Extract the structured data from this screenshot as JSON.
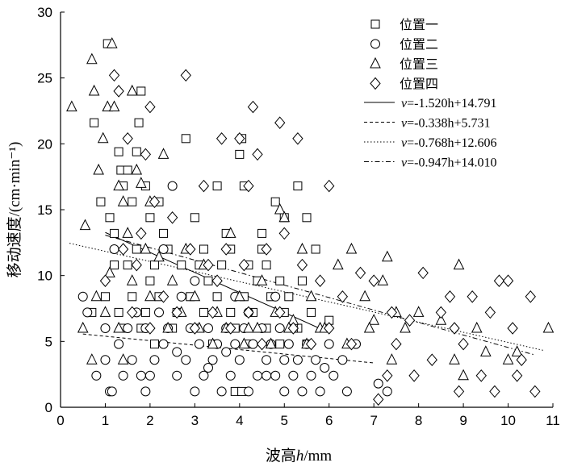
{
  "chart_data": {
    "type": "scatter",
    "xlabel_parts": [
      "波高",
      "h",
      "/mm"
    ],
    "ylabel": "移动速度/(cm·min⁻¹)",
    "xlim": [
      0,
      11
    ],
    "ylim": [
      0,
      30
    ],
    "xticks": [
      0,
      1,
      2,
      3,
      4,
      5,
      6,
      7,
      8,
      9,
      10,
      11
    ],
    "yticks": [
      0,
      5,
      10,
      15,
      20,
      25,
      30
    ],
    "grid": false,
    "legend_position": "top-right",
    "series": [
      {
        "name": "位置一",
        "marker": "square",
        "points": [
          [
            1.05,
            27.6
          ],
          [
            1.3,
            19.4
          ],
          [
            1.35,
            18.0
          ],
          [
            1.5,
            18.0
          ],
          [
            1.4,
            16.8
          ],
          [
            1.7,
            19.4
          ],
          [
            1.75,
            21.6
          ],
          [
            1.8,
            24.0
          ],
          [
            0.75,
            21.6
          ],
          [
            0.9,
            15.6
          ],
          [
            1.1,
            14.4
          ],
          [
            1.2,
            13.2
          ],
          [
            1.6,
            15.6
          ],
          [
            1.9,
            16.8
          ],
          [
            2.0,
            14.4
          ],
          [
            2.2,
            15.6
          ],
          [
            2.8,
            20.4
          ],
          [
            3.0,
            14.4
          ],
          [
            3.2,
            12.0
          ],
          [
            3.5,
            16.8
          ],
          [
            3.8,
            12.0
          ],
          [
            4.0,
            19.2
          ],
          [
            4.05,
            20.4
          ],
          [
            4.1,
            16.8
          ],
          [
            4.5,
            12.0
          ],
          [
            4.8,
            15.6
          ],
          [
            5.0,
            14.4
          ],
          [
            5.3,
            16.8
          ],
          [
            5.5,
            14.4
          ],
          [
            5.7,
            12.0
          ],
          [
            1.2,
            10.8
          ],
          [
            1.5,
            10.8
          ],
          [
            1.7,
            12.0
          ],
          [
            2.1,
            10.8
          ],
          [
            2.4,
            12.0
          ],
          [
            2.7,
            10.8
          ],
          [
            3.1,
            10.8
          ],
          [
            3.3,
            9.6
          ],
          [
            3.6,
            10.8
          ],
          [
            4.2,
            10.8
          ],
          [
            4.4,
            9.6
          ],
          [
            4.6,
            10.8
          ],
          [
            4.9,
            9.6
          ],
          [
            5.1,
            8.4
          ],
          [
            5.4,
            9.6
          ],
          [
            1.0,
            8.4
          ],
          [
            1.3,
            7.2
          ],
          [
            1.6,
            8.4
          ],
          [
            1.9,
            7.2
          ],
          [
            2.2,
            8.4
          ],
          [
            2.6,
            7.2
          ],
          [
            2.9,
            8.4
          ],
          [
            3.2,
            7.2
          ],
          [
            3.5,
            8.4
          ],
          [
            3.8,
            7.2
          ],
          [
            4.1,
            8.4
          ],
          [
            4.3,
            7.2
          ],
          [
            4.7,
            8.4
          ],
          [
            5.0,
            7.2
          ],
          [
            5.3,
            6.0
          ],
          [
            5.6,
            7.2
          ],
          [
            6.0,
            6.6
          ],
          [
            1.4,
            6.0
          ],
          [
            1.8,
            6.0
          ],
          [
            2.1,
            4.8
          ],
          [
            2.5,
            6.0
          ],
          [
            3.0,
            6.0
          ],
          [
            3.4,
            4.8
          ],
          [
            3.9,
            6.0
          ],
          [
            4.2,
            4.8
          ],
          [
            4.6,
            6.0
          ],
          [
            4.9,
            4.8
          ],
          [
            5.2,
            6.0
          ],
          [
            5.5,
            4.8
          ],
          [
            0.7,
            7.2
          ],
          [
            2.0,
            9.6
          ],
          [
            2.3,
            13.2
          ],
          [
            3.7,
            13.2
          ],
          [
            4.5,
            13.2
          ],
          [
            3.9,
            1.2
          ],
          [
            4.05,
            1.2
          ]
        ]
      },
      {
        "name": "位置二",
        "marker": "circle",
        "points": [
          [
            0.5,
            8.4
          ],
          [
            0.8,
            2.4
          ],
          [
            1.1,
            1.2
          ],
          [
            1.15,
            1.2
          ],
          [
            1.4,
            2.4
          ],
          [
            1.6,
            3.6
          ],
          [
            1.8,
            2.4
          ],
          [
            1.9,
            1.2
          ],
          [
            2.1,
            3.6
          ],
          [
            2.3,
            4.8
          ],
          [
            2.6,
            2.4
          ],
          [
            2.8,
            3.6
          ],
          [
            3.0,
            1.2
          ],
          [
            3.2,
            2.4
          ],
          [
            3.4,
            3.6
          ],
          [
            3.6,
            1.2
          ],
          [
            3.8,
            2.4
          ],
          [
            4.0,
            3.6
          ],
          [
            4.2,
            1.2
          ],
          [
            4.4,
            2.4
          ],
          [
            4.6,
            3.6
          ],
          [
            4.8,
            2.4
          ],
          [
            5.0,
            1.2
          ],
          [
            5.2,
            2.4
          ],
          [
            5.4,
            1.2
          ],
          [
            5.6,
            2.4
          ],
          [
            5.8,
            1.2
          ],
          [
            6.1,
            2.4
          ],
          [
            6.4,
            1.2
          ],
          [
            7.1,
            1.8
          ],
          [
            7.3,
            1.2
          ],
          [
            0.6,
            7.2
          ],
          [
            1.0,
            6.0
          ],
          [
            1.3,
            4.8
          ],
          [
            1.5,
            6.0
          ],
          [
            1.7,
            7.2
          ],
          [
            1.9,
            6.0
          ],
          [
            2.2,
            7.2
          ],
          [
            2.4,
            6.0
          ],
          [
            2.7,
            8.4
          ],
          [
            2.9,
            6.0
          ],
          [
            3.1,
            4.8
          ],
          [
            3.3,
            6.0
          ],
          [
            3.5,
            4.8
          ],
          [
            3.7,
            6.0
          ],
          [
            3.9,
            4.8
          ],
          [
            4.1,
            6.0
          ],
          [
            4.3,
            4.8
          ],
          [
            4.5,
            6.0
          ],
          [
            4.7,
            4.8
          ],
          [
            4.9,
            6.0
          ],
          [
            5.1,
            4.8
          ],
          [
            5.3,
            3.6
          ],
          [
            5.5,
            4.8
          ],
          [
            5.7,
            3.6
          ],
          [
            6.0,
            4.8
          ],
          [
            6.3,
            3.6
          ],
          [
            6.6,
            4.8
          ],
          [
            2.5,
            16.8
          ],
          [
            1.2,
            12.0
          ],
          [
            2.3,
            12.0
          ],
          [
            3.0,
            9.6
          ],
          [
            3.9,
            8.4
          ],
          [
            4.2,
            7.2
          ],
          [
            4.8,
            8.4
          ],
          [
            1.0,
            3.6
          ],
          [
            2.0,
            2.4
          ],
          [
            3.3,
            3.0
          ],
          [
            4.6,
            2.4
          ],
          [
            5.9,
            3.0
          ],
          [
            2.6,
            4.2
          ],
          [
            3.7,
            4.2
          ],
          [
            5.0,
            3.6
          ]
        ]
      },
      {
        "name": "位置三",
        "marker": "triangle",
        "points": [
          [
            0.25,
            22.8
          ],
          [
            0.55,
            13.8
          ],
          [
            0.7,
            26.4
          ],
          [
            0.75,
            24.0
          ],
          [
            0.85,
            18.0
          ],
          [
            0.95,
            20.4
          ],
          [
            1.05,
            22.8
          ],
          [
            1.15,
            27.6
          ],
          [
            1.2,
            22.8
          ],
          [
            1.3,
            16.8
          ],
          [
            1.4,
            15.6
          ],
          [
            1.5,
            13.2
          ],
          [
            1.6,
            24.0
          ],
          [
            1.7,
            18.0
          ],
          [
            1.8,
            17.0
          ],
          [
            1.9,
            12.0
          ],
          [
            2.0,
            15.6
          ],
          [
            2.2,
            11.4
          ],
          [
            2.3,
            19.2
          ],
          [
            2.5,
            9.6
          ],
          [
            2.8,
            12.0
          ],
          [
            3.0,
            8.4
          ],
          [
            3.2,
            10.8
          ],
          [
            3.5,
            7.2
          ],
          [
            3.8,
            13.2
          ],
          [
            4.0,
            8.4
          ],
          [
            4.2,
            6.0
          ],
          [
            4.5,
            9.6
          ],
          [
            4.8,
            7.2
          ],
          [
            4.9,
            15.0
          ],
          [
            5.0,
            14.4
          ],
          [
            5.2,
            6.6
          ],
          [
            5.4,
            12.0
          ],
          [
            5.6,
            8.4
          ],
          [
            5.8,
            6.0
          ],
          [
            6.2,
            10.8
          ],
          [
            6.5,
            12.0
          ],
          [
            6.8,
            8.4
          ],
          [
            7.0,
            6.6
          ],
          [
            7.2,
            9.6
          ],
          [
            7.3,
            11.4
          ],
          [
            7.5,
            7.2
          ],
          [
            7.7,
            6.0
          ],
          [
            8.0,
            7.2
          ],
          [
            8.5,
            6.6
          ],
          [
            8.9,
            10.8
          ],
          [
            9.0,
            2.4
          ],
          [
            9.5,
            4.2
          ],
          [
            10.2,
            4.2
          ],
          [
            10.9,
            6.0
          ],
          [
            0.5,
            6.0
          ],
          [
            0.8,
            8.4
          ],
          [
            1.0,
            7.2
          ],
          [
            1.1,
            10.2
          ],
          [
            1.3,
            6.0
          ],
          [
            1.6,
            9.6
          ],
          [
            2.0,
            8.4
          ],
          [
            2.4,
            6.0
          ],
          [
            2.7,
            7.2
          ],
          [
            3.1,
            6.0
          ],
          [
            3.4,
            4.8
          ],
          [
            3.7,
            6.0
          ],
          [
            4.1,
            4.8
          ],
          [
            4.4,
            6.0
          ],
          [
            4.7,
            4.8
          ],
          [
            5.1,
            6.0
          ],
          [
            5.5,
            4.8
          ],
          [
            5.9,
            6.0
          ],
          [
            6.4,
            4.8
          ],
          [
            6.9,
            6.0
          ],
          [
            7.4,
            3.6
          ],
          [
            8.8,
            3.6
          ],
          [
            9.3,
            6.0
          ],
          [
            10.0,
            3.6
          ],
          [
            1.4,
            3.6
          ],
          [
            0.7,
            3.6
          ]
        ]
      },
      {
        "name": "位置四",
        "marker": "diamond",
        "points": [
          [
            1.2,
            25.2
          ],
          [
            1.3,
            24.0
          ],
          [
            1.5,
            20.4
          ],
          [
            1.9,
            19.2
          ],
          [
            2.0,
            22.8
          ],
          [
            2.8,
            25.2
          ],
          [
            3.2,
            16.8
          ],
          [
            3.6,
            20.4
          ],
          [
            4.0,
            20.4
          ],
          [
            4.2,
            16.8
          ],
          [
            4.3,
            22.8
          ],
          [
            4.4,
            19.2
          ],
          [
            4.9,
            21.6
          ],
          [
            5.3,
            20.4
          ],
          [
            6.0,
            16.8
          ],
          [
            1.4,
            12.0
          ],
          [
            1.7,
            10.8
          ],
          [
            2.1,
            15.6
          ],
          [
            2.5,
            14.4
          ],
          [
            2.9,
            12.0
          ],
          [
            3.3,
            10.8
          ],
          [
            3.7,
            12.0
          ],
          [
            4.1,
            10.8
          ],
          [
            4.6,
            12.0
          ],
          [
            5.0,
            13.2
          ],
          [
            5.4,
            10.8
          ],
          [
            5.8,
            9.6
          ],
          [
            6.3,
            8.4
          ],
          [
            6.7,
            10.2
          ],
          [
            7.0,
            9.6
          ],
          [
            7.4,
            7.2
          ],
          [
            7.8,
            6.6
          ],
          [
            8.1,
            10.2
          ],
          [
            8.3,
            3.6
          ],
          [
            8.5,
            7.2
          ],
          [
            8.7,
            8.4
          ],
          [
            8.8,
            6.0
          ],
          [
            9.0,
            4.8
          ],
          [
            9.2,
            8.4
          ],
          [
            9.4,
            2.4
          ],
          [
            9.6,
            7.2
          ],
          [
            9.8,
            9.6
          ],
          [
            10.0,
            9.6
          ],
          [
            10.1,
            6.0
          ],
          [
            10.2,
            2.4
          ],
          [
            10.3,
            3.6
          ],
          [
            10.5,
            8.4
          ],
          [
            10.6,
            1.2
          ],
          [
            9.7,
            1.2
          ],
          [
            8.9,
            1.2
          ],
          [
            7.9,
            2.4
          ],
          [
            7.3,
            2.4
          ],
          [
            7.1,
            0.6
          ],
          [
            1.6,
            7.2
          ],
          [
            2.0,
            6.0
          ],
          [
            2.3,
            8.4
          ],
          [
            2.6,
            7.2
          ],
          [
            3.0,
            6.0
          ],
          [
            3.4,
            7.2
          ],
          [
            3.8,
            6.0
          ],
          [
            4.2,
            7.2
          ],
          [
            4.5,
            4.8
          ],
          [
            4.9,
            7.2
          ],
          [
            5.2,
            6.0
          ],
          [
            5.6,
            4.8
          ],
          [
            6.0,
            6.0
          ],
          [
            6.5,
            4.8
          ],
          [
            7.5,
            4.8
          ],
          [
            1.0,
            9.6
          ],
          [
            1.8,
            13.2
          ],
          [
            3.5,
            9.6
          ]
        ]
      }
    ],
    "fit_lines": [
      {
        "label_prefix": "v",
        "label": "=-1.520h+14.791",
        "slope": -1.52,
        "intercept": 14.791,
        "x_range": [
          1.0,
          6.0
        ],
        "dash": "solid"
      },
      {
        "label_prefix": "v",
        "label": "=-0.338h+5.731",
        "slope": -0.338,
        "intercept": 5.731,
        "x_range": [
          0.5,
          7.0
        ],
        "dash": "dashed"
      },
      {
        "label_prefix": "v",
        "label": "=-0.768h+12.606",
        "slope": -0.768,
        "intercept": 12.606,
        "x_range": [
          0.2,
          10.8
        ],
        "dash": "dotted"
      },
      {
        "label_prefix": "v",
        "label": "=-0.947h+14.010",
        "slope": -0.947,
        "intercept": 14.01,
        "x_range": [
          1.0,
          10.6
        ],
        "dash": "dashdot"
      }
    ]
  }
}
